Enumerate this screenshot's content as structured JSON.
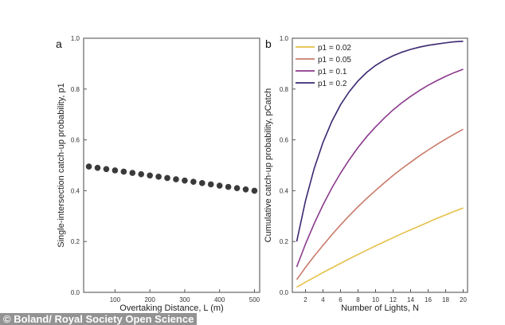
{
  "watermark": "© Boland/ Royal Society Open Science",
  "chart_data": [
    {
      "panel": "a",
      "type": "scatter",
      "xlabel": "Overtaking Distance, L (m)",
      "ylabel": "Single-intersection catch-up probability, p1",
      "xlim": [
        10,
        515
      ],
      "ylim": [
        0,
        1
      ],
      "xticks": [
        100,
        200,
        300,
        400,
        500
      ],
      "yticks": [
        0.0,
        0.2,
        0.4,
        0.6,
        0.8,
        1.0
      ],
      "x": [
        25,
        50,
        75,
        100,
        125,
        150,
        175,
        200,
        225,
        250,
        275,
        300,
        325,
        350,
        375,
        400,
        425,
        450,
        475,
        500
      ],
      "y": [
        0.495,
        0.49,
        0.485,
        0.48,
        0.475,
        0.47,
        0.465,
        0.46,
        0.455,
        0.45,
        0.445,
        0.44,
        0.435,
        0.43,
        0.425,
        0.42,
        0.415,
        0.41,
        0.405,
        0.4
      ],
      "color": "#3a3a3a"
    },
    {
      "panel": "b",
      "type": "line",
      "xlabel": "Number of Lights, N",
      "ylabel": "Cumulative catch-up probability, pCatch",
      "xlim": [
        0.5,
        20.5
      ],
      "ylim": [
        0,
        1
      ],
      "xticks": [
        2,
        4,
        6,
        8,
        10,
        12,
        14,
        16,
        18,
        20
      ],
      "yticks": [
        0.0,
        0.2,
        0.4,
        0.6,
        0.8,
        1.0
      ],
      "legend_position": "top-left",
      "x": [
        1,
        2,
        3,
        4,
        5,
        6,
        7,
        8,
        9,
        10,
        11,
        12,
        13,
        14,
        15,
        16,
        17,
        18,
        19,
        20
      ],
      "series": [
        {
          "name": "p1 = 0.02",
          "p": 0.02,
          "color": "#e6c14a",
          "values": [
            0.02,
            0.04,
            0.059,
            0.078,
            0.096,
            0.114,
            0.132,
            0.149,
            0.166,
            0.183,
            0.199,
            0.215,
            0.231,
            0.246,
            0.261,
            0.276,
            0.291,
            0.305,
            0.319,
            0.332
          ]
        },
        {
          "name": "p1 = 0.05",
          "p": 0.05,
          "color": "#c97b6c",
          "values": [
            0.05,
            0.098,
            0.143,
            0.185,
            0.226,
            0.265,
            0.302,
            0.337,
            0.37,
            0.401,
            0.431,
            0.46,
            0.487,
            0.512,
            0.537,
            0.56,
            0.582,
            0.603,
            0.623,
            0.642
          ]
        },
        {
          "name": "p1 = 0.1",
          "p": 0.1,
          "color": "#8b3a8c",
          "values": [
            0.1,
            0.19,
            0.271,
            0.344,
            0.41,
            0.469,
            0.522,
            0.57,
            0.613,
            0.651,
            0.686,
            0.718,
            0.746,
            0.771,
            0.794,
            0.815,
            0.833,
            0.85,
            0.865,
            0.878
          ]
        },
        {
          "name": "p1 = 0.2",
          "p": 0.2,
          "color": "#3b2870",
          "values": [
            0.2,
            0.36,
            0.488,
            0.59,
            0.672,
            0.738,
            0.79,
            0.832,
            0.866,
            0.893,
            0.914,
            0.931,
            0.945,
            0.956,
            0.965,
            0.972,
            0.977,
            0.982,
            0.986,
            0.988
          ]
        }
      ]
    }
  ],
  "panel_labels": [
    "a",
    "b"
  ]
}
